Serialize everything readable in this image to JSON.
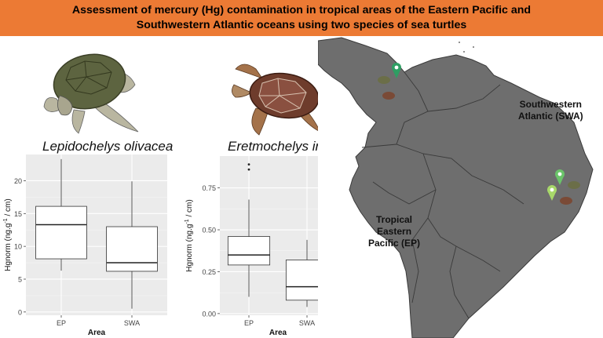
{
  "banner": {
    "line1": "Assessment of mercury (Hg) contamination in tropical areas of the Eastern Pacific and",
    "line2": "Southwestern Atlantic oceans using two species of sea turtles"
  },
  "map": {
    "label_swa_line1": "Southwestern",
    "label_swa_line2": "Atlantic (SWA)",
    "label_ep_line1": "Tropical",
    "label_ep_line2": "Eastern",
    "label_ep_line3": "Pacific (EP)",
    "pin_color_ep": "#2f9e63",
    "pin_color_swa1": "#6bc46a",
    "pin_color_swa2": "#a8d86a"
  },
  "colors": {
    "banner": "#ec7a34",
    "panel_bg": "#ebebeb",
    "grid": "#ffffff",
    "land": "#6e6e6e"
  },
  "chart_data": [
    {
      "type": "boxplot",
      "title": "Lepidochelys olivacea",
      "xlabel": "Area",
      "ylabel": "Hgnorm (ng.g-1 / cm)",
      "ylabel_parts": {
        "pre": "Hgnorm (ng.g",
        "sup": "-1",
        "post": " / cm)"
      },
      "ylim": [
        -0.5,
        24.0
      ],
      "yticks": [
        0,
        5,
        10,
        15,
        20
      ],
      "ytick_labels": [
        "0",
        "5",
        "10",
        "15",
        "20"
      ],
      "categories": [
        "EP",
        "SWA"
      ],
      "boxes": [
        {
          "name": "EP",
          "whisker_low": 6.3,
          "q1": 8.1,
          "median": 13.3,
          "q3": 16.1,
          "whisker_high": 23.3,
          "outliers": []
        },
        {
          "name": "SWA",
          "whisker_low": 0.5,
          "q1": 6.2,
          "median": 7.5,
          "q3": 13.0,
          "whisker_high": 19.9,
          "outliers": []
        }
      ]
    },
    {
      "type": "boxplot",
      "title": "Eretmochelys imbricata",
      "xlabel": "Area",
      "ylabel": "Hgnorm (ng.g-1 / cm)",
      "ylabel_parts": {
        "pre": "Hgnorm (ng.g",
        "sup": "-1",
        "post": " / cm)"
      },
      "ylim": [
        -0.01,
        0.94
      ],
      "yticks": [
        0.0,
        0.25,
        0.5,
        0.75
      ],
      "ytick_labels": [
        "0.00",
        "0.25",
        "0.50",
        "0.75"
      ],
      "categories": [
        "EP",
        "SWA"
      ],
      "boxes": [
        {
          "name": "EP",
          "whisker_low": 0.1,
          "q1": 0.29,
          "median": 0.35,
          "q3": 0.46,
          "whisker_high": 0.68,
          "outliers": [
            0.86,
            0.89
          ]
        },
        {
          "name": "SWA",
          "whisker_low": 0.04,
          "q1": 0.08,
          "median": 0.16,
          "q3": 0.32,
          "whisker_high": 0.44,
          "outliers": []
        }
      ]
    }
  ]
}
